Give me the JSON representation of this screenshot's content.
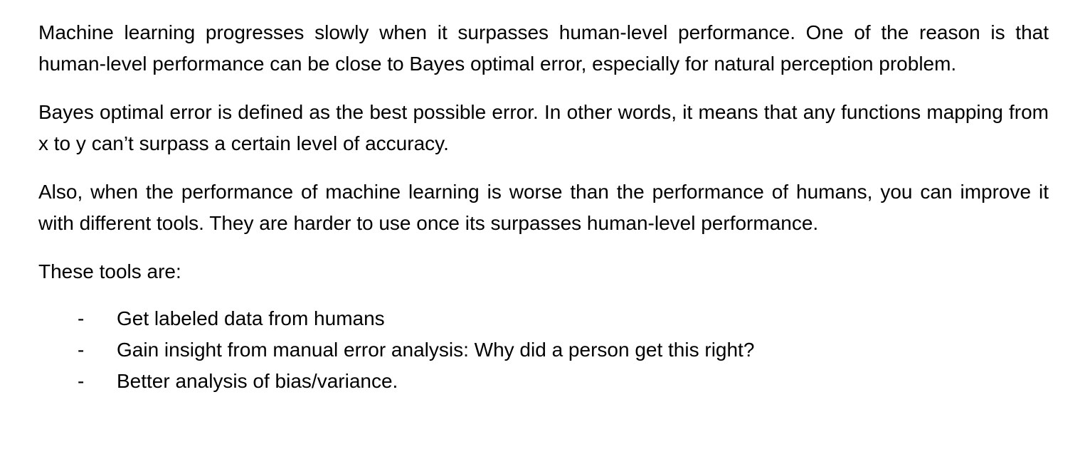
{
  "document": {
    "paragraphs": [
      "Machine learning progresses slowly when it surpasses human-level performance. One of the reason is that human-level performance can be close to Bayes optimal error, especially for natural perception problem.",
      "Bayes optimal error is defined as the best possible error. In other words, it means that any functions mapping from x to y can’t surpass a certain level of accuracy.",
      "Also, when the performance of machine learning is worse than the performance of humans, you can improve it with different tools. They are harder to use once its surpasses human-level performance.",
      "These tools are:"
    ],
    "bullet_marker": "-",
    "tools": [
      "Get labeled data from humans",
      "Gain insight from manual error analysis: Why did a person get this right?",
      "Better analysis of bias/variance."
    ]
  }
}
